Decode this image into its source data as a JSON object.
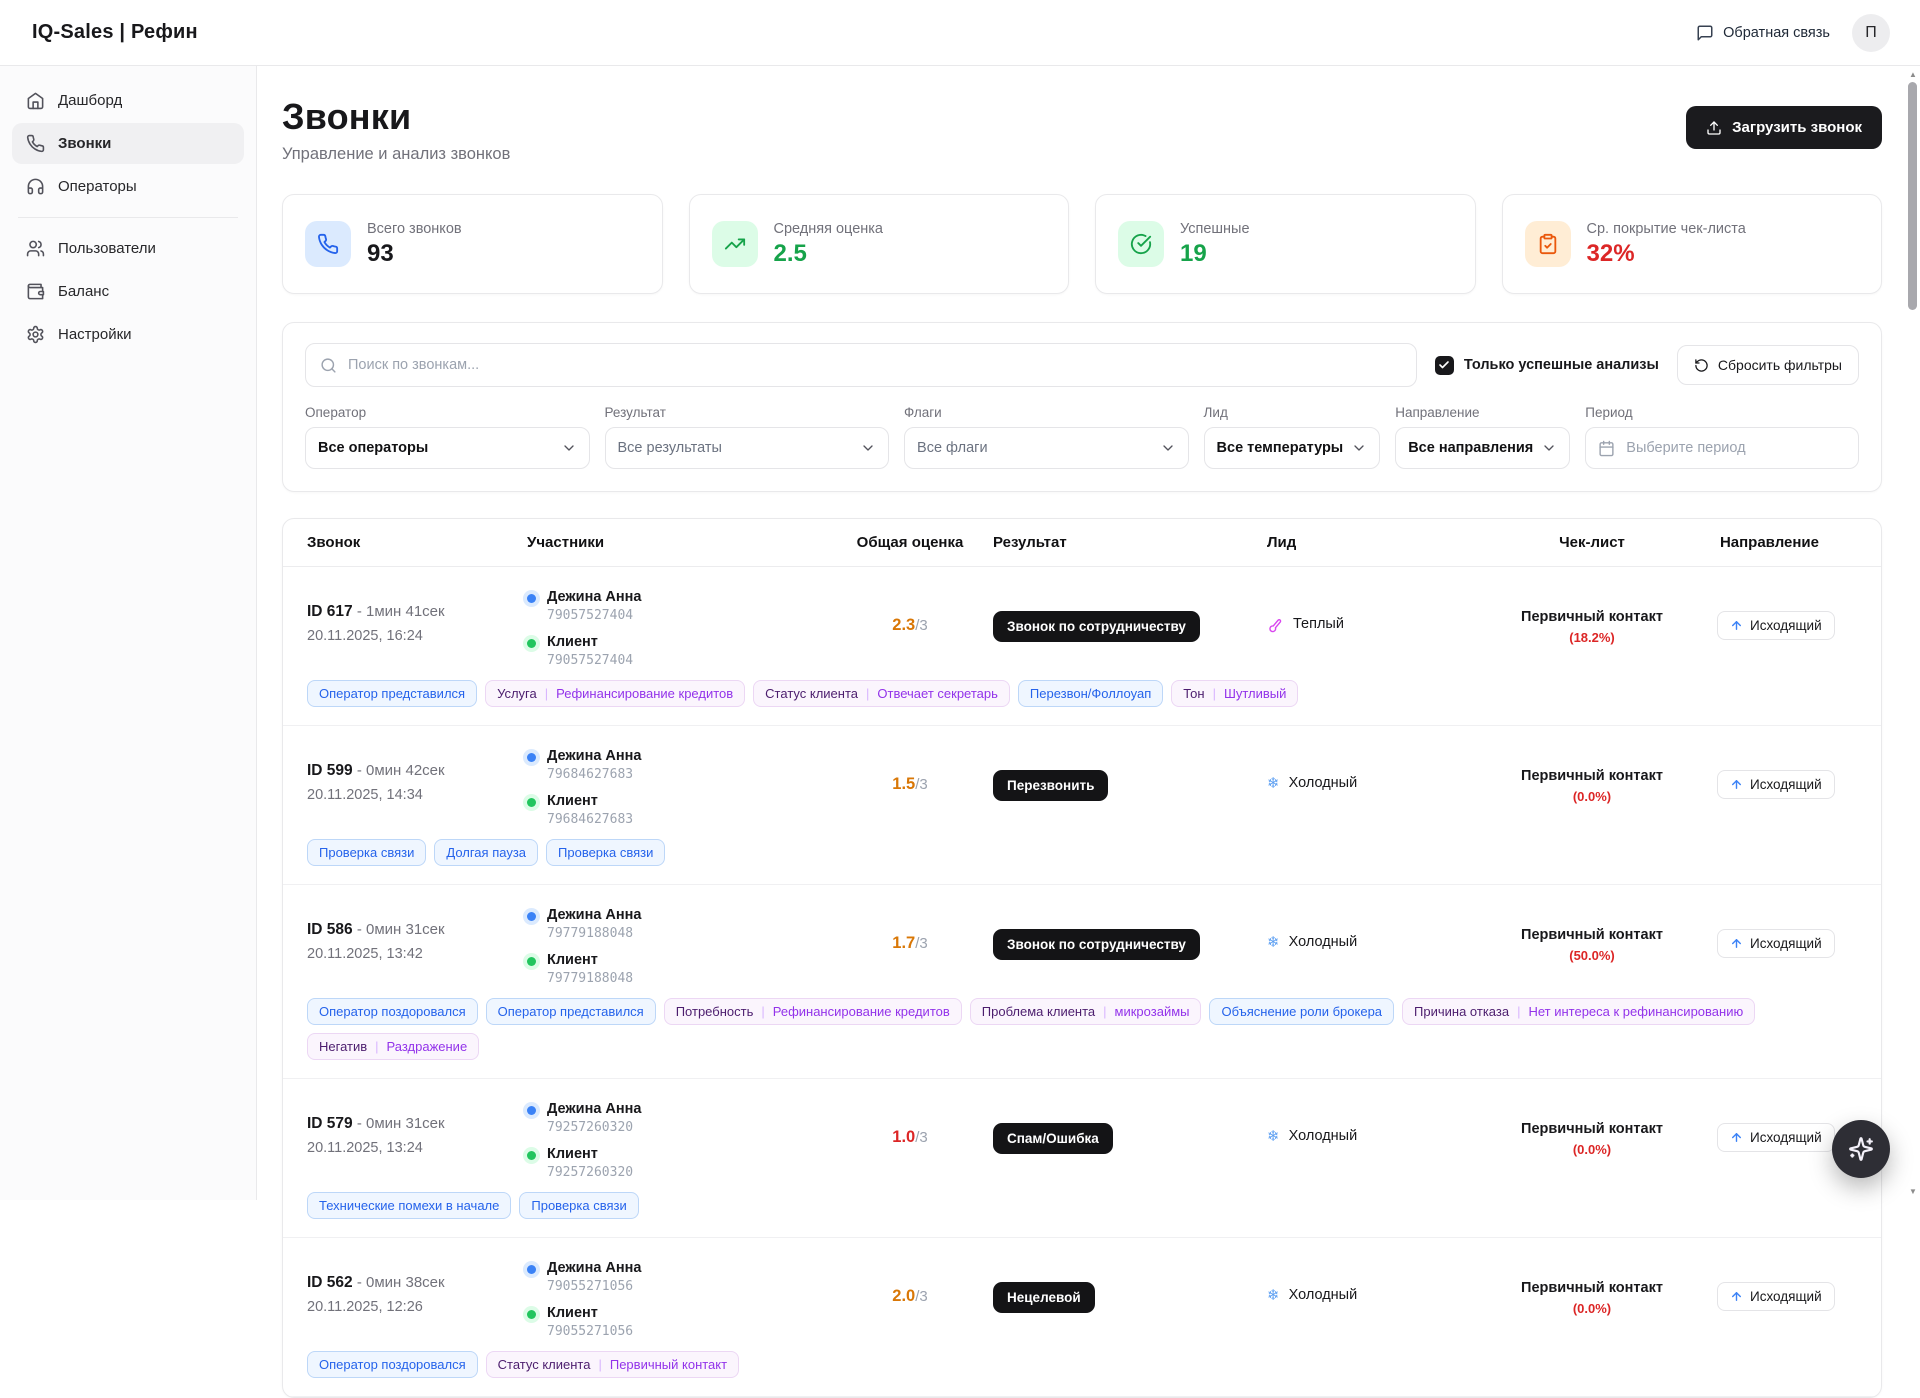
{
  "header": {
    "brand": "IQ-Sales | Рефин",
    "feedback_label": "Обратная связь",
    "avatar_initial": "П"
  },
  "sidebar": {
    "items": [
      {
        "id": "dashboard",
        "label": "Дашборд",
        "icon": "home-icon",
        "active": false
      },
      {
        "id": "calls",
        "label": "Звонки",
        "icon": "phone-icon",
        "active": true
      },
      {
        "id": "operators",
        "label": "Операторы",
        "icon": "headphones-icon",
        "active": false
      },
      {
        "divider": true
      },
      {
        "id": "users",
        "label": "Пользователи",
        "icon": "users-icon",
        "active": false
      },
      {
        "id": "balance",
        "label": "Баланс",
        "icon": "wallet-icon",
        "active": false
      },
      {
        "id": "settings",
        "label": "Настройки",
        "icon": "gear-icon",
        "active": false
      }
    ]
  },
  "page": {
    "title": "Звонки",
    "subtitle": "Управление и анализ звонков",
    "upload_button_label": "Загрузить звонок",
    "upload_icon": "upload-icon"
  },
  "stats": [
    {
      "id": "total-calls",
      "label": "Всего звонков",
      "value": "93",
      "icon": "phone-icon",
      "icon_color": "#2563eb",
      "icon_bg": "#dbeafe",
      "value_color": "#18181b"
    },
    {
      "id": "avg-score",
      "label": "Средняя оценка",
      "value": "2.5",
      "icon": "trending-up-icon",
      "icon_color": "#16a34a",
      "icon_bg": "#dcfce7",
      "value_color": "#16a34a"
    },
    {
      "id": "successful",
      "label": "Успешные",
      "value": "19",
      "icon": "check-circle-icon",
      "icon_color": "#16a34a",
      "icon_bg": "#dcfce7",
      "value_color": "#16a34a"
    },
    {
      "id": "checklist-coverage",
      "label": "Ср. покрытие чек-листа",
      "value": "32%",
      "icon": "clipboard-check-icon",
      "icon_color": "#ea580c",
      "icon_bg": "#ffedd5",
      "value_color": "#dc2626"
    }
  ],
  "filters": {
    "search_placeholder": "Поиск по звонкам...",
    "search_icon": "search-icon",
    "only_success_label": "Только успешные анализы",
    "only_success_checked": true,
    "reset_label": "Сбросить фильтры",
    "reset_icon": "rotate-ccw-icon",
    "controls": [
      {
        "id": "operator",
        "label": "Оператор",
        "value": "Все операторы",
        "type": "select",
        "emphasis": true
      },
      {
        "id": "result",
        "label": "Результат",
        "value": "Все результаты",
        "type": "select",
        "emphasis": false
      },
      {
        "id": "flags",
        "label": "Флаги",
        "value": "Все флаги",
        "type": "select",
        "emphasis": false
      },
      {
        "id": "lead",
        "label": "Лид",
        "value": "Все температуры",
        "type": "select",
        "emphasis": true
      },
      {
        "id": "direction",
        "label": "Направление",
        "value": "Все направления",
        "type": "select",
        "emphasis": true
      },
      {
        "id": "period",
        "label": "Период",
        "value": "",
        "placeholder": "Выберите период",
        "type": "date",
        "icon": "calendar-icon"
      }
    ]
  },
  "table": {
    "columns": [
      "Звонок",
      "Участники",
      "Общая оценка",
      "Результат",
      "Лид",
      "Чек-лист",
      "Направление"
    ],
    "rows": [
      {
        "id": "ID 617",
        "duration": "1мин 41сек",
        "datetime": "20.11.2025, 16:24",
        "participants": [
          {
            "name": "Дежина Анна",
            "phone": "79057527404",
            "dot": "blue"
          },
          {
            "name": "Клиент",
            "phone": "79057527404",
            "dot": "green"
          }
        ],
        "score": "2.3",
        "score_max": "/3",
        "score_color": "#d97706",
        "result": "Звонок по сотрудничеству",
        "lead": {
          "label": "Теплый",
          "type": "warm",
          "icon": "thermometer-icon"
        },
        "checklist": {
          "title": "Первичный контакт",
          "percent": "(18.2%)"
        },
        "direction": "Исходящий",
        "direction_icon": "arrow-up-icon",
        "tags": [
          {
            "text": "Оператор представился",
            "color": "blue"
          },
          {
            "key": "Услуга",
            "value": "Рефинансирование кредитов",
            "color": "purple"
          },
          {
            "key": "Статус клиента",
            "value": "Отвечает секретарь",
            "color": "purple"
          },
          {
            "text": "Перезвон/Фоллоуап",
            "color": "blue"
          },
          {
            "key": "Тон",
            "value": "Шутливый",
            "color": "purple"
          }
        ]
      },
      {
        "id": "ID 599",
        "duration": "0мин 42сек",
        "datetime": "20.11.2025, 14:34",
        "participants": [
          {
            "name": "Дежина Анна",
            "phone": "79684627683",
            "dot": "blue"
          },
          {
            "name": "Клиент",
            "phone": "79684627683",
            "dot": "green"
          }
        ],
        "score": "1.5",
        "score_max": "/3",
        "score_color": "#d97706",
        "result": "Перезвонить",
        "lead": {
          "label": "Холодный",
          "type": "cold",
          "icon": "snowflake-icon"
        },
        "checklist": {
          "title": "Первичный контакт",
          "percent": "(0.0%)"
        },
        "direction": "Исходящий",
        "direction_icon": "arrow-up-icon",
        "tags": [
          {
            "text": "Проверка связи",
            "color": "blue"
          },
          {
            "text": "Долгая пауза",
            "color": "blue"
          },
          {
            "text": "Проверка связи",
            "color": "blue"
          }
        ]
      },
      {
        "id": "ID 586",
        "duration": "0мин 31сек",
        "datetime": "20.11.2025, 13:42",
        "participants": [
          {
            "name": "Дежина Анна",
            "phone": "79779188048",
            "dot": "blue"
          },
          {
            "name": "Клиент",
            "phone": "79779188048",
            "dot": "green"
          }
        ],
        "score": "1.7",
        "score_max": "/3",
        "score_color": "#d97706",
        "result": "Звонок по сотрудничеству",
        "lead": {
          "label": "Холодный",
          "type": "cold",
          "icon": "snowflake-icon"
        },
        "checklist": {
          "title": "Первичный контакт",
          "percent": "(50.0%)"
        },
        "direction": "Исходящий",
        "direction_icon": "arrow-up-icon",
        "tags": [
          {
            "text": "Оператор поздоровался",
            "color": "blue"
          },
          {
            "text": "Оператор представился",
            "color": "blue"
          },
          {
            "key": "Потребность",
            "value": "Рефинансирование кредитов",
            "color": "purple"
          },
          {
            "key": "Проблема клиента",
            "value": "микрозаймы",
            "color": "purple"
          },
          {
            "text": "Объяснение роли брокера",
            "color": "blue"
          },
          {
            "key": "Причина отказа",
            "value": "Нет интереса к рефинансированию",
            "color": "purple"
          },
          {
            "key": "Негатив",
            "value": "Раздражение",
            "color": "purple"
          }
        ]
      },
      {
        "id": "ID 579",
        "duration": "0мин 31сек",
        "datetime": "20.11.2025, 13:24",
        "participants": [
          {
            "name": "Дежина Анна",
            "phone": "79257260320",
            "dot": "blue"
          },
          {
            "name": "Клиент",
            "phone": "79257260320",
            "dot": "green"
          }
        ],
        "score": "1.0",
        "score_max": "/3",
        "score_color": "#dc2626",
        "result": "Спам/Ошибка",
        "lead": {
          "label": "Холодный",
          "type": "cold",
          "icon": "snowflake-icon"
        },
        "checklist": {
          "title": "Первичный контакт",
          "percent": "(0.0%)"
        },
        "direction": "Исходящий",
        "direction_icon": "arrow-up-icon",
        "tags": [
          {
            "text": "Технические помехи в начале",
            "color": "blue"
          },
          {
            "text": "Проверка связи",
            "color": "blue"
          }
        ]
      },
      {
        "id": "ID 562",
        "duration": "0мин 38сек",
        "datetime": "20.11.2025, 12:26",
        "participants": [
          {
            "name": "Дежина Анна",
            "phone": "79055271056",
            "dot": "blue"
          },
          {
            "name": "Клиент",
            "phone": "79055271056",
            "dot": "green"
          }
        ],
        "score": "2.0",
        "score_max": "/3",
        "score_color": "#d97706",
        "result": "Нецелевой",
        "lead": {
          "label": "Холодный",
          "type": "cold",
          "icon": "snowflake-icon"
        },
        "checklist": {
          "title": "Первичный контакт",
          "percent": "(0.0%)"
        },
        "direction": "Исходящий",
        "direction_icon": "arrow-up-icon",
        "tags": [
          {
            "text": "Оператор поздоровался",
            "color": "blue"
          },
          {
            "key": "Статус клиента",
            "value": "Первичный контакт",
            "color": "purple"
          }
        ]
      }
    ]
  },
  "fab": {
    "icon": "sparkles-icon"
  }
}
